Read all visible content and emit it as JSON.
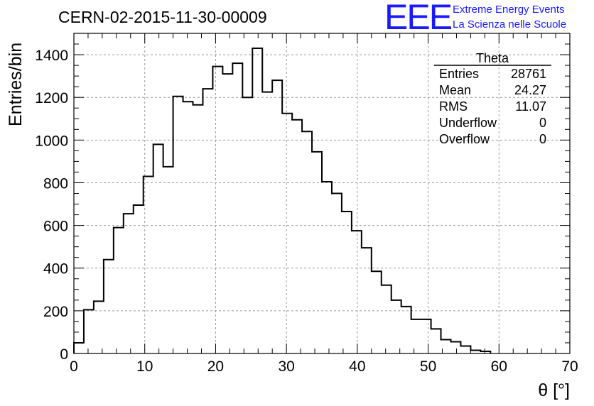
{
  "header": {
    "title": "CERN-02-2015-11-30-00009",
    "logo_text": "EEE",
    "logo_line1": "Extreme Energy Events",
    "logo_line2": "La Scienza nelle Scuole"
  },
  "stats_box": {
    "name": "Theta",
    "rows": [
      {
        "label": "Entries",
        "value": "28761"
      },
      {
        "label": "Mean",
        "value": "24.27"
      },
      {
        "label": "RMS",
        "value": "11.07"
      },
      {
        "label": "Underflow",
        "value": "0"
      },
      {
        "label": "Overflow",
        "value": "0"
      }
    ]
  },
  "colors": {
    "logo": "#1a1aff",
    "histogram_line": "#000000",
    "grid": "#9a9a9a"
  },
  "chart_data": {
    "type": "bar",
    "histogram": true,
    "title": "CERN-02-2015-11-30-00009",
    "xlabel": "θ [°]",
    "ylabel": "Entries/bin",
    "xlim": [
      0,
      70
    ],
    "ylim": [
      0,
      1500
    ],
    "bin_width": 1.4,
    "bin_edges_start": 0,
    "xticks": [
      0,
      10,
      20,
      30,
      40,
      50,
      60,
      70
    ],
    "yticks": [
      0,
      200,
      400,
      600,
      800,
      1000,
      1200,
      1400
    ],
    "grid": true,
    "values": [
      50,
      205,
      245,
      440,
      590,
      655,
      695,
      830,
      980,
      875,
      1205,
      1180,
      1165,
      1240,
      1345,
      1310,
      1360,
      1200,
      1430,
      1225,
      1280,
      1125,
      1095,
      1040,
      945,
      805,
      750,
      665,
      575,
      495,
      385,
      320,
      250,
      220,
      160,
      160,
      115,
      65,
      55,
      35,
      15,
      10,
      0,
      0,
      0,
      0,
      0,
      0,
      0,
      0
    ],
    "stats": {
      "name": "Theta",
      "entries": 28761,
      "mean": 24.27,
      "rms": 11.07,
      "underflow": 0,
      "overflow": 0
    }
  }
}
